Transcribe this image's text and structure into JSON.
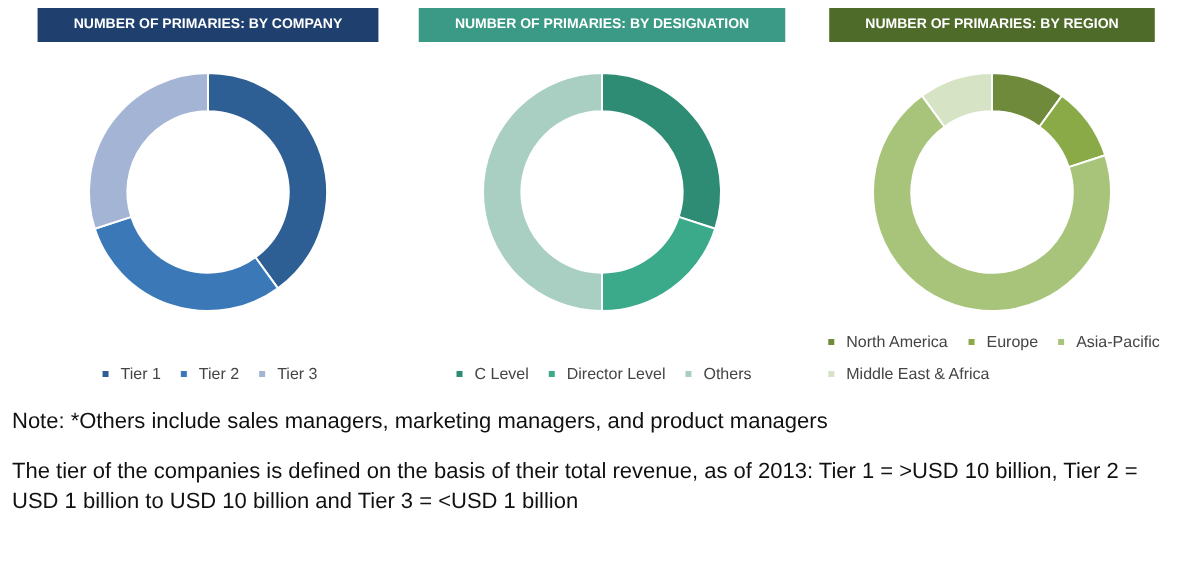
{
  "chart_data": [
    {
      "type": "donut",
      "title": "NUMBER OF PRIMARIES: BY COMPANY",
      "categories": [
        "Tier 1",
        "Tier 2",
        "Tier 3"
      ],
      "values": [
        40,
        30,
        30
      ],
      "colors": [
        "#2e5f94",
        "#3a78b8",
        "#a3b4d4"
      ],
      "legend": "bottom",
      "annotations": [
        "Note: *Others include sales managers, marketing managers, and product managers",
        "The  tier of the companies is defined on the basis of their total revenue,  as of 2013: Tier 1 = >USD 10 billion, Tier 2 = USD 1 billion to USD 10 billion and Tier 3 = <USD 1 billion"
      ]
    },
    {
      "type": "donut",
      "title": "NUMBER OF PRIMARIES: BY DESIGNATION",
      "categories": [
        "C Level",
        "Director Level",
        "Others"
      ],
      "values": [
        30,
        20,
        50
      ],
      "colors": [
        "#2e8b74",
        "#3aaa8a",
        "#a8cfc2"
      ],
      "legend": "bottom"
    },
    {
      "type": "donut",
      "title": "NUMBER OF PRIMARIES: BY REGION",
      "categories": [
        "North America",
        "Europe",
        "Asia-Pacific",
        "Middle East & Africa"
      ],
      "values": [
        10,
        10,
        70,
        10
      ],
      "colors": [
        "#6e8a3a",
        "#8aaa48",
        "#a8c47a",
        "#d6e3c5"
      ],
      "legend": "bottom"
    }
  ]
}
